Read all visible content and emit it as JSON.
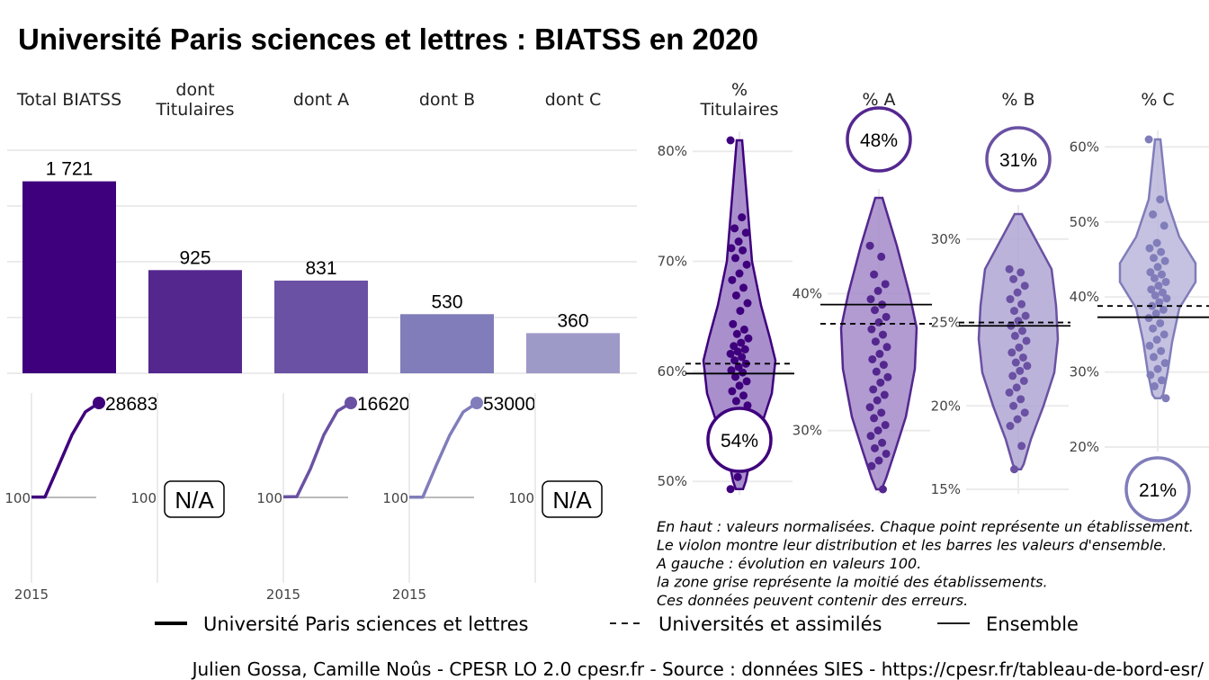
{
  "title": "Université Paris sciences et lettres  :  BIATSS en 2020",
  "colors": {
    "c1": "#3f007d",
    "c2": "#54278f",
    "c3": "#6a51a3",
    "c4": "#807dba",
    "c5": "#9e9ac8"
  },
  "chart_data": [
    {
      "type": "bar",
      "categories": [
        "Total BIATSS",
        "dont Titulaires",
        "dont A",
        "dont B",
        "dont C"
      ],
      "values": [
        1721,
        925,
        831,
        530,
        360
      ],
      "value_labels": [
        "1 721",
        "925",
        "831",
        "530",
        "360"
      ],
      "ylim": [
        0,
        2000
      ]
    },
    {
      "type": "line",
      "panels": [
        {
          "name": "Total BIATSS",
          "start_label": "100",
          "end_label": "28683",
          "x_tick": "2015",
          "na": false,
          "values": [
            100,
            120,
            9500,
            19000,
            26000,
            28683
          ]
        },
        {
          "name": "dont Titulaires",
          "start_label": "100",
          "na": true,
          "na_label": "N/A"
        },
        {
          "name": "dont A",
          "start_label": "100",
          "end_label": "16620",
          "x_tick": "2015",
          "na": false,
          "values": [
            100,
            150,
            5000,
            11000,
            15200,
            16620
          ]
        },
        {
          "name": "dont B",
          "start_label": "100",
          "end_label": "53000",
          "x_tick": "2015",
          "na": false,
          "values": [
            100,
            160,
            18000,
            35000,
            48000,
            53000
          ]
        },
        {
          "name": "dont C",
          "start_label": "100",
          "na": true,
          "na_label": "N/A"
        }
      ]
    },
    {
      "type": "scatter",
      "panels": [
        {
          "header": [
            "%",
            "Titulaires"
          ],
          "ticks": [
            50,
            60,
            70,
            80
          ],
          "tick_labels": [
            "50%",
            "60%",
            "70%",
            "80%"
          ],
          "ylim": [
            49.2,
            81
          ],
          "value": 54,
          "value_label": "54%",
          "ensemble": 59.8,
          "universites": 60.7,
          "points": [
            81,
            74,
            73,
            72.6,
            71.8,
            71.2,
            71.0,
            70.3,
            69.7,
            68.9,
            68.3,
            67.6,
            66.9,
            66.2,
            65.5,
            64.3,
            63.8,
            63.4,
            63.0,
            62.6,
            62.3,
            62.0,
            61.8,
            61.6,
            61.3,
            61.0,
            60.7,
            60.4,
            60.1,
            59.9,
            59.5,
            59.1,
            58.7,
            58.2,
            57.8,
            57.3,
            56.9,
            56.4,
            55.9,
            55.3,
            54.6,
            53.8,
            53.0,
            52.1,
            51.2,
            50.4,
            49.3
          ]
        },
        {
          "header": [
            "% A"
          ],
          "ticks": [
            30,
            40
          ],
          "tick_labels": [
            "30%",
            "40%"
          ],
          "ylim": [
            25.7,
            47
          ],
          "value": 48,
          "value_label": "48%",
          "ensemble": 39.2,
          "universites": 37.8,
          "points": [
            43.5,
            42.7,
            41.4,
            40.7,
            40.2,
            39.6,
            39.2,
            38.8,
            38.3,
            37.9,
            37.4,
            37.0,
            36.5,
            36.1,
            35.6,
            35.2,
            34.8,
            34.3,
            33.9,
            33.5,
            33.0,
            32.6,
            32.2,
            31.7,
            31.3,
            30.9,
            30.4,
            30.0,
            29.6,
            29.1,
            28.7,
            28.3,
            27.8,
            27.4,
            25.7
          ]
        },
        {
          "header": [
            "% B"
          ],
          "ticks": [
            15,
            20,
            25,
            30
          ],
          "tick_labels": [
            "15%",
            "20%",
            "25%",
            "30%"
          ],
          "ylim": [
            15,
            31.5
          ],
          "value": 31,
          "value_label": "31%",
          "ensemble": 24.8,
          "universites": 25.0,
          "points": [
            28.2,
            28.0,
            27.6,
            27.2,
            26.8,
            26.4,
            26.1,
            25.7,
            25.4,
            25.1,
            24.8,
            24.5,
            24.2,
            23.9,
            23.5,
            23.2,
            22.9,
            22.6,
            22.4,
            22.1,
            21.8,
            21.5,
            21.1,
            20.8,
            20.4,
            20.0,
            19.6,
            19.2,
            18.8,
            17.6,
            16.2
          ]
        },
        {
          "header": [
            "% C"
          ],
          "ticks": [
            20,
            30,
            40,
            50,
            60
          ],
          "tick_labels": [
            "20%",
            "30%",
            "40%",
            "50%",
            "60%"
          ],
          "ylim": [
            20,
            61
          ],
          "value": 21,
          "value_label": "21%",
          "ensemble": 37.3,
          "universites": 38.8,
          "points": [
            61,
            53,
            51,
            49.5,
            47.2,
            46.5,
            46.0,
            45.2,
            44.8,
            44.0,
            43.3,
            43.0,
            42.5,
            42.0,
            41.5,
            41.0,
            40.6,
            40.2,
            39.8,
            39.3,
            38.8,
            38.3,
            37.8,
            37.2,
            36.5,
            35.8,
            35.0,
            34.3,
            33.5,
            32.8,
            32.0,
            31.2,
            30.4,
            29.6,
            28.9,
            28.1,
            26.5
          ]
        }
      ]
    }
  ],
  "notes": [
    "En haut : valeurs normalisées. Chaque point représente un établissement.",
    "Le violon montre leur distribution et les barres les valeurs d'ensemble.",
    "A gauche : évolution en valeurs 100.",
    "la zone grise représente la moitié des établissements.",
    "Ces données peuvent contenir des erreurs."
  ],
  "legend": {
    "items": [
      {
        "label": "Université Paris sciences et lettres",
        "style": "solid-thick"
      },
      {
        "label": "Universités et assimilés",
        "style": "dashed"
      },
      {
        "label": "Ensemble",
        "style": "solid"
      }
    ]
  },
  "caption": "Julien Gossa, Camille Noûs - CPESR LO 2.0 cpesr.fr - Source : données SIES - https://cpesr.fr/tableau-de-bord-esr/"
}
